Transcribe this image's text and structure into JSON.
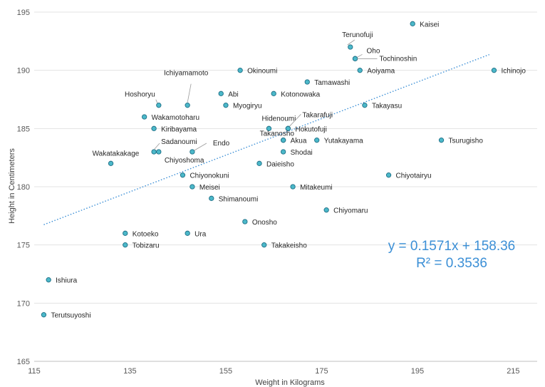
{
  "chart_data": {
    "type": "scatter",
    "xlabel": "Weight in Kilograms",
    "ylabel": "Height in Centimeters",
    "xlim": [
      115,
      220
    ],
    "ylim": [
      165,
      195
    ],
    "x_ticks": [
      115,
      135,
      155,
      175,
      195,
      215
    ],
    "y_ticks": [
      165,
      170,
      175,
      180,
      185,
      190,
      195
    ],
    "grid": "horizontal",
    "marker_color": "#4bb8c9",
    "marker_edge": "#1f6f86",
    "trendline": {
      "type": "linear",
      "slope": 0.1571,
      "intercept": 158.36,
      "x_range": [
        117,
        210
      ],
      "color": "#3b8fd6",
      "equation": "y = 0.1571x + 158.36",
      "r_squared": "R² = 0.3536"
    },
    "points": [
      {
        "name": "Kaisei",
        "x": 194,
        "y": 194
      },
      {
        "name": "Terunofuji",
        "x": 181,
        "y": 192
      },
      {
        "name": "Oho",
        "x": 182,
        "y": 191
      },
      {
        "name": "Tochinoshin",
        "x": 182,
        "y": 191
      },
      {
        "name": "Okinoumi",
        "x": 158,
        "y": 190
      },
      {
        "name": "Aoiyama",
        "x": 183,
        "y": 190
      },
      {
        "name": "Ichinojo",
        "x": 211,
        "y": 190
      },
      {
        "name": "Tamawashi",
        "x": 172,
        "y": 189
      },
      {
        "name": "Ichiyamamoto",
        "x": 147,
        "y": 187
      },
      {
        "name": "Abi",
        "x": 154,
        "y": 188
      },
      {
        "name": "Kotonowaka",
        "x": 165,
        "y": 188
      },
      {
        "name": "Hoshoryu",
        "x": 141,
        "y": 187
      },
      {
        "name": "Myogiryu",
        "x": 155,
        "y": 187
      },
      {
        "name": "Takayasu",
        "x": 184,
        "y": 187
      },
      {
        "name": "Wakamotoharu",
        "x": 138,
        "y": 186
      },
      {
        "name": "Hidenoumi",
        "x": 164,
        "y": 185
      },
      {
        "name": "Takarafuji",
        "x": 168,
        "y": 185
      },
      {
        "name": "Hokutofuji",
        "x": 168,
        "y": 185
      },
      {
        "name": "Kiribayama",
        "x": 140,
        "y": 185
      },
      {
        "name": "Takanosho",
        "x": 167,
        "y": 184
      },
      {
        "name": "Akua",
        "x": 167,
        "y": 184
      },
      {
        "name": "Yutakayama",
        "x": 174,
        "y": 184
      },
      {
        "name": "Tsurugisho",
        "x": 200,
        "y": 184
      },
      {
        "name": "Sadanoumi",
        "x": 140,
        "y": 183
      },
      {
        "name": "Chiyoshoma",
        "x": 141,
        "y": 183
      },
      {
        "name": "Endo",
        "x": 148,
        "y": 183
      },
      {
        "name": "Shodai",
        "x": 167,
        "y": 183
      },
      {
        "name": "Wakatakakage",
        "x": 131,
        "y": 182
      },
      {
        "name": "Daieisho",
        "x": 162,
        "y": 182
      },
      {
        "name": "Chiyonokuni",
        "x": 146,
        "y": 181
      },
      {
        "name": "Chiyotairyu",
        "x": 189,
        "y": 181
      },
      {
        "name": "Meisei",
        "x": 148,
        "y": 180
      },
      {
        "name": "Mitakeumi",
        "x": 169,
        "y": 180
      },
      {
        "name": "Shimanoumi",
        "x": 152,
        "y": 179
      },
      {
        "name": "Chiyomaru",
        "x": 176,
        "y": 178
      },
      {
        "name": "Onosho",
        "x": 159,
        "y": 177
      },
      {
        "name": "Kotoeko",
        "x": 134,
        "y": 176
      },
      {
        "name": "Ura",
        "x": 147,
        "y": 176
      },
      {
        "name": "Tobizaru",
        "x": 134,
        "y": 175
      },
      {
        "name": "Takakeisho",
        "x": 163,
        "y": 175
      },
      {
        "name": "Ishiura",
        "x": 118,
        "y": 172
      },
      {
        "name": "Terutsuyoshi",
        "x": 117,
        "y": 169
      }
    ]
  }
}
